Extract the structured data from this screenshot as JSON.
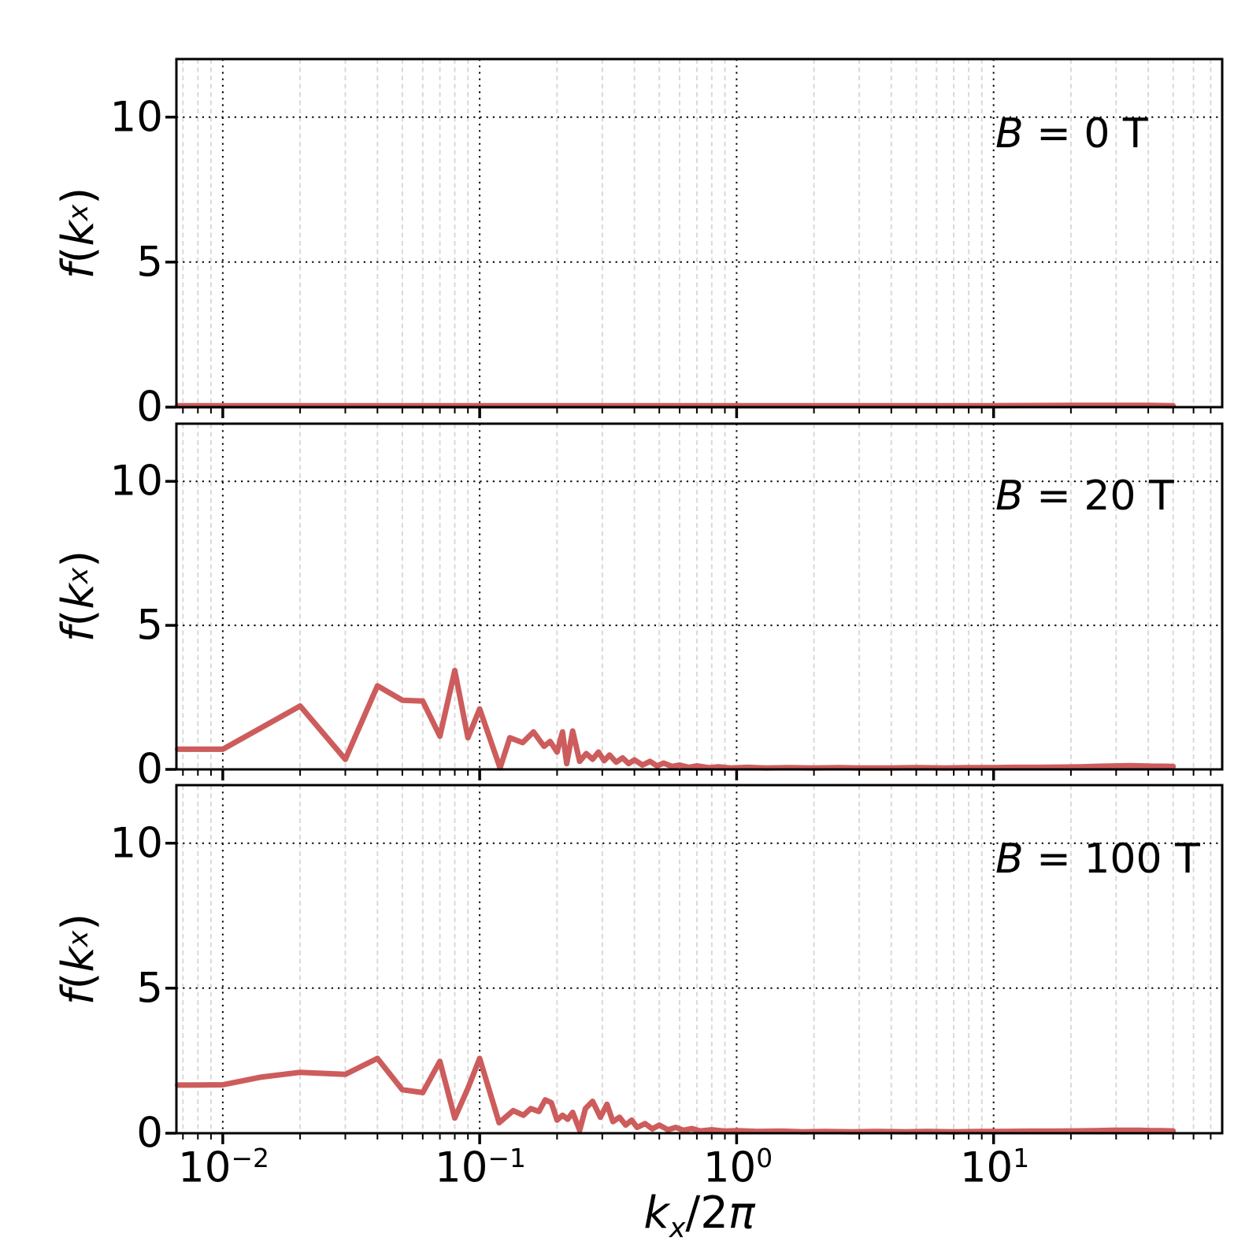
{
  "chart_data": {
    "type": "line",
    "title": "",
    "xlabel_parts": {
      "k": "k",
      "sub": "x",
      "mid": "/2",
      "pi": "π"
    },
    "ylabel_parts": {
      "f": "f",
      "open": "(",
      "k": "k",
      "sub": "x",
      "close": ")"
    },
    "layout": {
      "x_scale": "log",
      "xlim": [
        0.0066,
        77.6
      ],
      "ylim": [
        0,
        12
      ],
      "x_major_ticks": [
        0.01,
        0.1,
        1,
        10
      ],
      "y_ticks": [
        0,
        5,
        10
      ],
      "y_grid_values": [
        5,
        10
      ],
      "grid": "major dotted black (x decades, y=5,10), minor dashed light-gray (log minors)",
      "legend": "none",
      "colors": {
        "line": "#cd5c5c",
        "major_grid": "#000000",
        "minor_grid": "#d9d9d9",
        "spine": "#000000",
        "background": "#ffffff"
      }
    },
    "x_tick_labels": [
      {
        "base": "10",
        "exp": "−2"
      },
      {
        "base": "10",
        "exp": "−1"
      },
      {
        "base": "10",
        "exp": "0"
      },
      {
        "base": "10",
        "exp": "1"
      }
    ],
    "y_tick_labels": [
      "0",
      "5",
      "10"
    ],
    "panels": [
      {
        "label": {
          "b": "B",
          "rest": " = 0 T"
        },
        "series": [
          [
            0.00667,
            0.05
          ],
          [
            0.01,
            0.05
          ],
          [
            0.05,
            0.05
          ],
          [
            0.1,
            0.05
          ],
          [
            0.5,
            0.05
          ],
          [
            1,
            0.05
          ],
          [
            5,
            0.05
          ],
          [
            10,
            0.05
          ],
          [
            20,
            0.06
          ],
          [
            30,
            0.06
          ],
          [
            40,
            0.06
          ],
          [
            50,
            0.05
          ]
        ]
      },
      {
        "label": {
          "b": "B",
          "rest": " = 20 T"
        },
        "series": [
          [
            0.00667,
            0.7
          ],
          [
            0.01,
            0.7
          ],
          [
            0.02,
            2.2
          ],
          [
            0.03,
            0.35
          ],
          [
            0.04,
            2.9
          ],
          [
            0.05,
            2.4
          ],
          [
            0.06,
            2.37
          ],
          [
            0.07,
            1.15
          ],
          [
            0.08,
            3.43
          ],
          [
            0.09,
            1.1
          ],
          [
            0.1,
            2.1
          ],
          [
            0.12,
            0.05
          ],
          [
            0.131,
            1.1
          ],
          [
            0.147,
            0.93
          ],
          [
            0.162,
            1.3
          ],
          [
            0.178,
            0.8
          ],
          [
            0.188,
            0.97
          ],
          [
            0.2,
            0.6
          ],
          [
            0.21,
            1.3
          ],
          [
            0.218,
            0.2
          ],
          [
            0.23,
            1.33
          ],
          [
            0.245,
            0.28
          ],
          [
            0.26,
            0.55
          ],
          [
            0.275,
            0.35
          ],
          [
            0.29,
            0.6
          ],
          [
            0.305,
            0.3
          ],
          [
            0.32,
            0.5
          ],
          [
            0.34,
            0.25
          ],
          [
            0.36,
            0.4
          ],
          [
            0.38,
            0.2
          ],
          [
            0.4,
            0.33
          ],
          [
            0.43,
            0.15
          ],
          [
            0.46,
            0.28
          ],
          [
            0.49,
            0.12
          ],
          [
            0.52,
            0.22
          ],
          [
            0.56,
            0.1
          ],
          [
            0.6,
            0.15
          ],
          [
            0.65,
            0.07
          ],
          [
            0.7,
            0.12
          ],
          [
            0.78,
            0.06
          ],
          [
            0.85,
            0.09
          ],
          [
            0.95,
            0.05
          ],
          [
            1.1,
            0.07
          ],
          [
            1.3,
            0.05
          ],
          [
            1.6,
            0.06
          ],
          [
            2.0,
            0.05
          ],
          [
            2.5,
            0.06
          ],
          [
            3.0,
            0.05
          ],
          [
            4.0,
            0.05
          ],
          [
            5.0,
            0.06
          ],
          [
            6.5,
            0.05
          ],
          [
            8.0,
            0.06
          ],
          [
            10,
            0.06
          ],
          [
            12,
            0.07
          ],
          [
            15,
            0.07
          ],
          [
            18,
            0.08
          ],
          [
            22,
            0.09
          ],
          [
            26,
            0.11
          ],
          [
            30,
            0.12
          ],
          [
            34,
            0.13
          ],
          [
            38,
            0.12
          ],
          [
            42,
            0.11
          ],
          [
            46,
            0.11
          ],
          [
            50,
            0.1
          ]
        ]
      },
      {
        "label": {
          "b": "B",
          "rest": " = 100 T"
        },
        "series": [
          [
            0.00667,
            1.66
          ],
          [
            0.01,
            1.67
          ],
          [
            0.014,
            1.93
          ],
          [
            0.02,
            2.1
          ],
          [
            0.03,
            2.03
          ],
          [
            0.04,
            2.58
          ],
          [
            0.05,
            1.5
          ],
          [
            0.06,
            1.4
          ],
          [
            0.07,
            2.48
          ],
          [
            0.08,
            0.52
          ],
          [
            0.09,
            1.55
          ],
          [
            0.1,
            2.58
          ],
          [
            0.119,
            0.36
          ],
          [
            0.135,
            0.78
          ],
          [
            0.148,
            0.62
          ],
          [
            0.158,
            0.85
          ],
          [
            0.17,
            0.75
          ],
          [
            0.18,
            1.15
          ],
          [
            0.19,
            1.05
          ],
          [
            0.2,
            0.45
          ],
          [
            0.21,
            0.62
          ],
          [
            0.22,
            0.48
          ],
          [
            0.23,
            0.72
          ],
          [
            0.245,
            0.1
          ],
          [
            0.258,
            0.85
          ],
          [
            0.275,
            1.1
          ],
          [
            0.295,
            0.55
          ],
          [
            0.313,
            1.0
          ],
          [
            0.33,
            0.4
          ],
          [
            0.35,
            0.55
          ],
          [
            0.37,
            0.28
          ],
          [
            0.39,
            0.45
          ],
          [
            0.41,
            0.2
          ],
          [
            0.44,
            0.33
          ],
          [
            0.47,
            0.15
          ],
          [
            0.5,
            0.28
          ],
          [
            0.54,
            0.12
          ],
          [
            0.58,
            0.2
          ],
          [
            0.62,
            0.1
          ],
          [
            0.67,
            0.16
          ],
          [
            0.72,
            0.08
          ],
          [
            0.8,
            0.12
          ],
          [
            0.9,
            0.07
          ],
          [
            1.0,
            0.09
          ],
          [
            1.2,
            0.06
          ],
          [
            1.5,
            0.07
          ],
          [
            1.8,
            0.05
          ],
          [
            2.2,
            0.06
          ],
          [
            2.8,
            0.05
          ],
          [
            3.5,
            0.06
          ],
          [
            4.5,
            0.05
          ],
          [
            5.5,
            0.06
          ],
          [
            7.0,
            0.05
          ],
          [
            9.0,
            0.06
          ],
          [
            11,
            0.06
          ],
          [
            14,
            0.07
          ],
          [
            17,
            0.07
          ],
          [
            21,
            0.08
          ],
          [
            25,
            0.09
          ],
          [
            29,
            0.1
          ],
          [
            33,
            0.1
          ],
          [
            37,
            0.1
          ],
          [
            41,
            0.09
          ],
          [
            45,
            0.09
          ],
          [
            50,
            0.08
          ]
        ]
      }
    ]
  }
}
